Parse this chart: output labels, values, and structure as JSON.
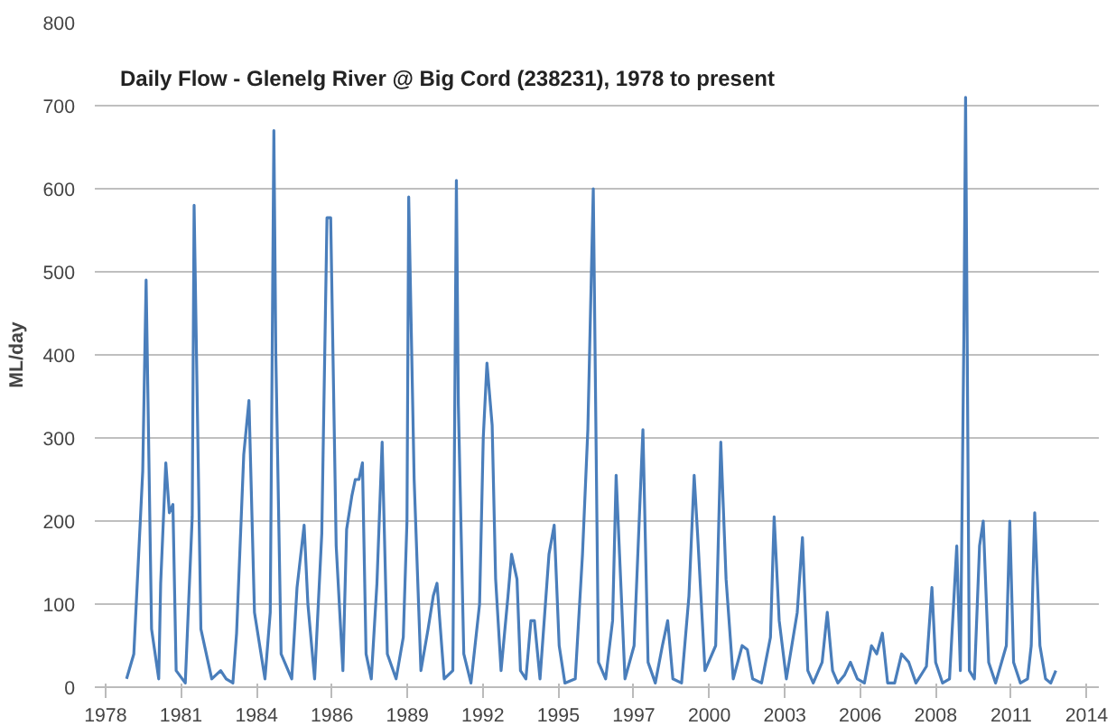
{
  "chart_data": {
    "type": "line",
    "title": "Daily Flow - Glenelg River @ Big Cord (238231), 1978 to present",
    "ylabel": "ML/day",
    "x": [
      "1979-07-07",
      "1979-10-11",
      "1980-02-06",
      "1980-03-22",
      "1980-06-02",
      "1980-09-05",
      "1980-10-01",
      "1980-12-08",
      "1981-01-24",
      "1981-03-12",
      "1981-04-24",
      "1981-08-23",
      "1981-11-23",
      "1981-12-18",
      "1982-03-18",
      "1982-08-09",
      "1982-12-05",
      "1983-02-16",
      "1983-05-16",
      "1983-07-04",
      "1983-10-07",
      "1983-12-15",
      "1984-02-26",
      "1984-07-14",
      "1984-09-22",
      "1984-11-09",
      "1984-12-05",
      "1985-02-13",
      "1985-07-04",
      "1985-09-12",
      "1985-12-15",
      "1986-02-03",
      "1986-05-03",
      "1986-08-06",
      "1986-10-14",
      "1986-12-02",
      "1987-02-13",
      "1987-05-13",
      "1987-07-01",
      "1987-09-08",
      "1987-10-24",
      "1987-12-12",
      "1988-01-27",
      "1988-03-15",
      "1988-05-23",
      "1988-08-06",
      "1988-10-14",
      "1988-12-22",
      "1989-04-17",
      "1989-07-21",
      "1989-09-08",
      "1989-10-01",
      "1989-12-12",
      "1990-03-12",
      "1990-06-15",
      "1990-08-23",
      "1990-10-11",
      "1991-01-14",
      "1991-05-09",
      "1991-06-25",
      "1991-07-21",
      "1991-10-01",
      "1992-01-04",
      "1992-04-27",
      "1992-06-15",
      "1992-08-03",
      "1992-10-11",
      "1992-11-26",
      "1993-02-06",
      "1993-05-09",
      "1993-06-25",
      "1993-09-05",
      "1993-10-21",
      "1994-01-01",
      "1994-03-08",
      "1994-04-24",
      "1994-07-07",
      "1994-11-03",
      "1995-01-11",
      "1995-03-18",
      "1995-06-02",
      "1995-10-17",
      "1996-01-21",
      "1996-04-01",
      "1996-06-12",
      "1996-08-20",
      "1996-11-23",
      "1997-02-23",
      "1997-04-11",
      "1997-05-26",
      "1997-08-06",
      "1997-12-05",
      "1998-04-01",
      "1998-06-08",
      "1998-09-12",
      "1998-12-15",
      "1999-02-23",
      "1999-05-03",
      "1999-08-26",
      "1999-12-02",
      "2000-02-09",
      "2000-03-25",
      "2000-07-01",
      "2000-11-20",
      "2001-01-27",
      "2001-04-07",
      "2001-07-11",
      "2001-11-06",
      "2002-01-14",
      "2002-03-25",
      "2002-07-21",
      "2002-11-16",
      "2003-01-04",
      "2003-03-12",
      "2003-06-15",
      "2003-11-06",
      "2004-01-14",
      "2004-03-25",
      "2004-06-05",
      "2004-10-01",
      "2004-12-08",
      "2005-02-16",
      "2005-04-27",
      "2005-07-27",
      "2005-10-11",
      "2006-01-11",
      "2006-04-14",
      "2006-07-17",
      "2006-09-25",
      "2006-12-08",
      "2007-02-16",
      "2007-05-20",
      "2007-08-20",
      "2007-11-23",
      "2008-02-26",
      "2008-07-14",
      "2008-09-25",
      "2008-11-13",
      "2009-02-13",
      "2009-05-16",
      "2009-08-20",
      "2009-10-07",
      "2009-11-23",
      "2009-12-15",
      "2010-02-03",
      "2010-04-11",
      "2010-06-18",
      "2010-08-06",
      "2010-10-17",
      "2011-01-17",
      "2011-06-08",
      "2011-07-24",
      "2011-09-12",
      "2011-12-12",
      "2012-03-15",
      "2012-05-03",
      "2012-06-18",
      "2012-08-26",
      "2012-11-09",
      "2013-01-17",
      "2013-03-25"
    ],
    "series": [
      {
        "color": "#4a7ebb",
        "values": [
          10,
          40,
          260,
          490,
          70,
          10,
          125,
          270,
          210,
          220,
          20,
          5,
          205,
          580,
          70,
          10,
          20,
          10,
          5,
          65,
          280,
          345,
          90,
          10,
          90,
          670,
          400,
          40,
          10,
          120,
          195,
          100,
          10,
          185,
          565,
          565,
          170,
          20,
          190,
          230,
          250,
          250,
          270,
          40,
          10,
          125,
          295,
          40,
          10,
          60,
          200,
          590,
          250,
          20,
          70,
          110,
          125,
          10,
          20,
          610,
          340,
          40,
          5,
          100,
          300,
          390,
          315,
          130,
          20,
          110,
          160,
          130,
          20,
          10,
          80,
          80,
          10,
          160,
          195,
          50,
          5,
          10,
          160,
          310,
          600,
          30,
          10,
          80,
          255,
          160,
          10,
          50,
          310,
          30,
          5,
          50,
          80,
          10,
          5,
          110,
          255,
          185,
          20,
          50,
          295,
          130,
          10,
          50,
          45,
          10,
          5,
          60,
          205,
          80,
          10,
          90,
          180,
          20,
          5,
          30,
          90,
          20,
          5,
          15,
          30,
          10,
          5,
          50,
          40,
          65,
          5,
          5,
          40,
          30,
          5,
          25,
          120,
          30,
          5,
          10,
          170,
          20,
          430,
          710,
          20,
          10,
          170,
          200,
          30,
          5,
          50,
          200,
          30,
          5,
          10,
          50,
          210,
          50,
          10,
          5,
          20
        ]
      }
    ],
    "xlim": [
      "1978-05-12",
      "2014-10-16"
    ],
    "xticks": [
      {
        "value": "1978-10-01",
        "label": "1978"
      },
      {
        "value": "1981-06-28",
        "label": "1981"
      },
      {
        "value": "1984-03-24",
        "label": "1984"
      },
      {
        "value": "1986-12-19",
        "label": "1986"
      },
      {
        "value": "1989-09-14",
        "label": "1989"
      },
      {
        "value": "1992-06-10",
        "label": "1992"
      },
      {
        "value": "1995-03-07",
        "label": "1995"
      },
      {
        "value": "1997-12-01",
        "label": "1997"
      },
      {
        "value": "2000-08-28",
        "label": "2000"
      },
      {
        "value": "2003-05-25",
        "label": "2003"
      },
      {
        "value": "2006-02-18",
        "label": "2006"
      },
      {
        "value": "2008-11-14",
        "label": "2008"
      },
      {
        "value": "2011-08-11",
        "label": "2011"
      },
      {
        "value": "2014-05-07",
        "label": "2014"
      }
    ],
    "ylim": [
      0,
      800
    ],
    "yticks": [
      0,
      100,
      200,
      300,
      400,
      500,
      600,
      700,
      800
    ],
    "grid": "y",
    "marker": "none",
    "line_style": "solid"
  }
}
